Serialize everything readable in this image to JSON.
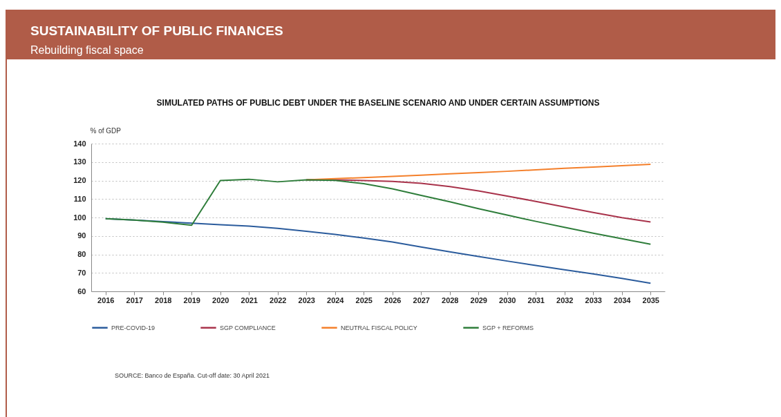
{
  "chart_data": {
    "type": "line",
    "title": "SUSTAINABILITY OF PUBLIC FINANCES",
    "subtitle": "Rebuilding fiscal space",
    "ylabel": "% of GDP",
    "annotations": [
      "SIMULATED PATHS OF PUBLIC DEBT UNDER THE BASELINE SCENARIO AND UNDER CERTAIN ASSUMPTIONS",
      "SOURCE: Banco de España. Cut-off date: 30 April 2021"
    ],
    "categories": [
      "2016",
      "2017",
      "2018",
      "2019",
      "2020",
      "2021",
      "2022",
      "2023",
      "2024",
      "2025",
      "2026",
      "2027",
      "2028",
      "2029",
      "2030",
      "2031",
      "2032",
      "2033",
      "2034",
      "2035"
    ],
    "series": [
      {
        "name": "PRE-COVID-19",
        "color": "#2a5b9c",
        "values": [
          99.3,
          98.6,
          97.8,
          96.9,
          96.1,
          95.3,
          94.1,
          92.5,
          90.8,
          88.9,
          86.7,
          84.0,
          81.4,
          78.9,
          76.4,
          74.0,
          71.7,
          69.4,
          67.0,
          64.4
        ]
      },
      {
        "name": "SGP COMPLIANCE",
        "color": "#a8324a",
        "values": [
          null,
          null,
          null,
          null,
          null,
          null,
          null,
          120.4,
          120.4,
          120.0,
          119.5,
          118.5,
          116.7,
          114.4,
          111.6,
          108.7,
          105.7,
          102.7,
          99.9,
          97.6
        ]
      },
      {
        "name": "NEUTRAL FISCAL POLICY",
        "color": "#f47f2a",
        "values": [
          null,
          null,
          null,
          null,
          null,
          null,
          null,
          120.4,
          121.0,
          121.6,
          122.2,
          122.9,
          123.6,
          124.3,
          125.0,
          125.8,
          126.6,
          127.3,
          128.0,
          128.8
        ]
      },
      {
        "name": "SGP + REFORMS",
        "color": "#2e7d3a",
        "values": [
          99.3,
          98.6,
          97.5,
          95.8,
          120.0,
          120.7,
          119.3,
          120.4,
          120.1,
          118.3,
          115.5,
          112.0,
          108.5,
          104.8,
          101.3,
          97.9,
          94.7,
          91.5,
          88.5,
          85.5
        ]
      }
    ],
    "ylim": [
      60,
      140
    ],
    "yticks": [
      60,
      70,
      80,
      90,
      100,
      110,
      120,
      130,
      140
    ],
    "grid": "y",
    "legend": "bottom",
    "marker": "none",
    "line_style": "solid"
  }
}
